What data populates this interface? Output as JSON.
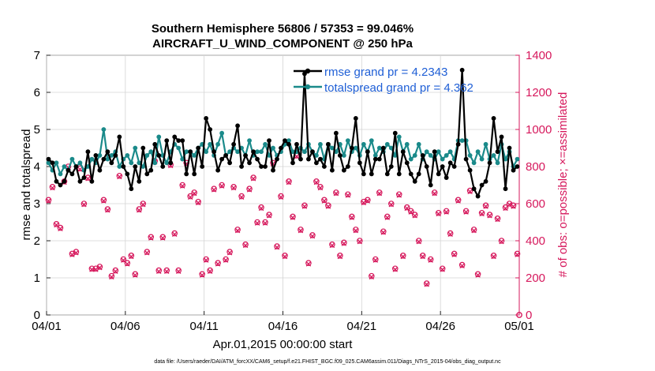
{
  "chart_data": {
    "type": "line",
    "title": "Southern Hemisphere 56806 / 57353 = 99.046%",
    "subtitle": "AIRCRAFT_U_WIND_COMPONENT @ 250 hPa",
    "xlabel": "Apr.01,2015 00:00:00 start",
    "ylabel_left": "rmse and totalspread",
    "ylabel_right": "# of obs: o=possible; ×=assimilated",
    "ylim_left": [
      0,
      7
    ],
    "ylim_right": [
      0,
      1400
    ],
    "yticks_left": [
      "0",
      "1",
      "2",
      "3",
      "4",
      "5",
      "6",
      "7"
    ],
    "yticks_right": [
      "0",
      "200",
      "400",
      "600",
      "800",
      "1000",
      "1200",
      "1400"
    ],
    "xlim_days": [
      0,
      30
    ],
    "xticks": [
      {
        "day": 0,
        "label": "04/01"
      },
      {
        "day": 5,
        "label": "04/06"
      },
      {
        "day": 10,
        "label": "04/11"
      },
      {
        "day": 15,
        "label": "04/16"
      },
      {
        "day": 20,
        "label": "04/21"
      },
      {
        "day": 25,
        "label": "04/26"
      },
      {
        "day": 30,
        "label": "05/01"
      }
    ],
    "series": [
      {
        "name": "rmse",
        "legend": "rmse grand pr = 4.2343",
        "color": "#000000",
        "x": [
          0.125,
          0.375,
          0.625,
          0.875,
          1.125,
          1.375,
          1.625,
          1.875,
          2.125,
          2.375,
          2.625,
          2.875,
          3.125,
          3.375,
          3.625,
          3.875,
          4.125,
          4.375,
          4.625,
          4.875,
          5.125,
          5.375,
          5.625,
          5.875,
          6.125,
          6.375,
          6.625,
          6.875,
          7.125,
          7.375,
          7.625,
          7.875,
          8.125,
          8.375,
          8.625,
          8.875,
          9.125,
          9.375,
          9.625,
          9.875,
          10.125,
          10.375,
          10.625,
          10.875,
          11.125,
          11.375,
          11.625,
          11.875,
          12.125,
          12.375,
          12.625,
          12.875,
          13.125,
          13.375,
          13.625,
          13.875,
          14.125,
          14.375,
          14.625,
          14.875,
          15.125,
          15.375,
          15.625,
          15.875,
          16.125,
          16.375,
          16.625,
          16.875,
          17.125,
          17.375,
          17.625,
          17.875,
          18.125,
          18.375,
          18.625,
          18.875,
          19.125,
          19.375,
          19.625,
          19.875,
          20.125,
          20.375,
          20.625,
          20.875,
          21.125,
          21.375,
          21.625,
          21.875,
          22.125,
          22.375,
          22.625,
          22.875,
          23.125,
          23.375,
          23.625,
          23.875,
          24.125,
          24.375,
          24.625,
          24.875,
          25.125,
          25.375,
          25.625,
          25.875,
          26.125,
          26.375,
          26.625,
          26.875,
          27.125,
          27.375,
          27.625,
          27.875,
          28.125,
          28.375,
          28.625,
          28.875,
          29.125,
          29.375,
          29.625,
          29.875
        ],
        "values": [
          4.2,
          4.1,
          3.6,
          3.5,
          3.6,
          3.9,
          3.8,
          4.0,
          3.6,
          3.7,
          4.4,
          3.6,
          4.3,
          3.9,
          4.2,
          4.4,
          4.1,
          4.3,
          4.8,
          4.0,
          3.8,
          3.4,
          4.0,
          3.6,
          4.5,
          3.8,
          3.9,
          4.6,
          4.3,
          4.0,
          4.7,
          4.1,
          4.8,
          4.7,
          4.7,
          3.8,
          4.4,
          3.8,
          4.5,
          4.0,
          5.3,
          5.0,
          4.4,
          3.9,
          4.2,
          4.3,
          4.1,
          4.6,
          5.1,
          4.0,
          4.3,
          4.1,
          4.4,
          4.2,
          4.0,
          4.0,
          4.7,
          3.9,
          4.2,
          4.5,
          4.7,
          4.6,
          4.1,
          4.6,
          4.2,
          6.5,
          4.2,
          4.4,
          4.1,
          4.2,
          4.0,
          4.6,
          3.9,
          4.9,
          4.3,
          3.9,
          4.0,
          4.5,
          5.3,
          4.1,
          3.8,
          4.4,
          3.8,
          4.2,
          4.2,
          4.5,
          3.8,
          4.0,
          4.9,
          3.8,
          4.4,
          4.1,
          3.8,
          3.6,
          3.8,
          4.3,
          4.0,
          3.5,
          4.4,
          3.8,
          4.0,
          3.7,
          4.1,
          4.0,
          4.6,
          6.6,
          4.2,
          3.9,
          3.4,
          3.2,
          3.5,
          3.6,
          4.1,
          5.3,
          4.4,
          4.8,
          3.4,
          4.5,
          3.9,
          4.0
        ]
      },
      {
        "name": "totalspread",
        "legend": "totalspread grand pr = 4.362",
        "color": "#1a8a8a",
        "x": [
          0.125,
          0.375,
          0.625,
          0.875,
          1.125,
          1.375,
          1.625,
          1.875,
          2.125,
          2.375,
          2.625,
          2.875,
          3.125,
          3.375,
          3.625,
          3.875,
          4.125,
          4.375,
          4.625,
          4.875,
          5.125,
          5.375,
          5.625,
          5.875,
          6.125,
          6.375,
          6.625,
          6.875,
          7.125,
          7.375,
          7.625,
          7.875,
          8.125,
          8.375,
          8.625,
          8.875,
          9.125,
          9.375,
          9.625,
          9.875,
          10.125,
          10.375,
          10.625,
          10.875,
          11.125,
          11.375,
          11.625,
          11.875,
          12.125,
          12.375,
          12.625,
          12.875,
          13.125,
          13.375,
          13.625,
          13.875,
          14.125,
          14.375,
          14.625,
          14.875,
          15.125,
          15.375,
          15.625,
          15.875,
          16.125,
          16.375,
          16.625,
          16.875,
          17.125,
          17.375,
          17.625,
          17.875,
          18.125,
          18.375,
          18.625,
          18.875,
          19.125,
          19.375,
          19.625,
          19.875,
          20.125,
          20.375,
          20.625,
          20.875,
          21.125,
          21.375,
          21.625,
          21.875,
          22.125,
          22.375,
          22.625,
          22.875,
          23.125,
          23.375,
          23.625,
          23.875,
          24.125,
          24.375,
          24.625,
          24.875,
          25.125,
          25.375,
          25.625,
          25.875,
          26.125,
          26.375,
          26.625,
          26.875,
          27.125,
          27.375,
          27.625,
          27.875,
          28.125,
          28.375,
          28.625,
          28.875,
          29.125,
          29.375,
          29.625,
          29.875
        ],
        "values": [
          4.1,
          3.9,
          4.1,
          3.8,
          4.0,
          3.9,
          4.2,
          4.0,
          4.1,
          3.9,
          4.0,
          4.2,
          4.1,
          4.3,
          5.0,
          4.2,
          4.3,
          4.4,
          4.0,
          4.2,
          4.3,
          4.1,
          4.5,
          4.1,
          4.0,
          4.3,
          4.4,
          4.1,
          4.8,
          4.3,
          4.1,
          4.4,
          4.6,
          4.5,
          4.2,
          4.4,
          4.4,
          4.3,
          4.5,
          4.6,
          4.4,
          4.6,
          4.3,
          4.6,
          4.9,
          4.3,
          4.4,
          4.5,
          4.4,
          4.5,
          4.3,
          4.7,
          4.3,
          4.4,
          4.4,
          4.6,
          4.3,
          4.5,
          4.3,
          4.4,
          4.6,
          4.7,
          4.4,
          4.4,
          4.5,
          4.4,
          4.6,
          4.4,
          4.3,
          4.6,
          4.2,
          4.6,
          4.5,
          4.4,
          4.6,
          4.3,
          4.7,
          4.4,
          4.5,
          4.3,
          4.6,
          4.4,
          4.7,
          4.3,
          4.5,
          4.4,
          4.6,
          4.5,
          4.3,
          4.8,
          4.4,
          4.6,
          4.2,
          4.3,
          4.6,
          4.2,
          4.4,
          4.3,
          4.2,
          4.4,
          4.2,
          4.3,
          4.4,
          4.2,
          4.7,
          4.7,
          4.7,
          4.3,
          4.1,
          4.4,
          4.2,
          4.6,
          4.2,
          4.3,
          4.1,
          4.6,
          4.2,
          4.4,
          4.0,
          4.2
        ]
      }
    ],
    "obs": {
      "color": "#d6185c",
      "x": [
        0.125,
        0.375,
        0.625,
        0.875,
        1.125,
        1.375,
        1.625,
        1.875,
        2.125,
        2.375,
        2.625,
        2.875,
        3.125,
        3.375,
        3.625,
        3.875,
        4.125,
        4.375,
        4.625,
        4.875,
        5.125,
        5.375,
        5.625,
        5.875,
        6.125,
        6.375,
        6.625,
        6.875,
        7.125,
        7.375,
        7.625,
        7.875,
        8.125,
        8.375,
        8.625,
        8.875,
        9.125,
        9.375,
        9.625,
        9.875,
        10.125,
        10.375,
        10.625,
        10.875,
        11.125,
        11.375,
        11.625,
        11.875,
        12.125,
        12.375,
        12.625,
        12.875,
        13.125,
        13.375,
        13.625,
        13.875,
        14.125,
        14.375,
        14.625,
        14.875,
        15.125,
        15.375,
        15.625,
        15.875,
        16.125,
        16.375,
        16.625,
        16.875,
        17.125,
        17.375,
        17.625,
        17.875,
        18.125,
        18.375,
        18.625,
        18.875,
        19.125,
        19.375,
        19.625,
        19.875,
        20.125,
        20.375,
        20.625,
        20.875,
        21.125,
        21.375,
        21.625,
        21.875,
        22.125,
        22.375,
        22.625,
        22.875,
        23.125,
        23.375,
        23.625,
        23.875,
        24.125,
        24.375,
        24.625,
        24.875,
        25.125,
        25.375,
        25.625,
        25.875,
        26.125,
        26.375,
        26.625,
        26.875,
        27.125,
        27.375,
        27.625,
        27.875,
        28.125,
        28.375,
        28.625,
        28.875,
        29.125,
        29.375,
        29.625,
        29.875
      ],
      "possible": [
        620,
        690,
        490,
        470,
        720,
        800,
        330,
        340,
        790,
        600,
        740,
        250,
        250,
        260,
        620,
        570,
        210,
        240,
        750,
        300,
        280,
        320,
        220,
        570,
        600,
        340,
        420,
        830,
        240,
        420,
        240,
        810,
        440,
        240,
        700,
        820,
        640,
        660,
        610,
        220,
        300,
        240,
        680,
        280,
        700,
        300,
        340,
        690,
        460,
        640,
        380,
        680,
        740,
        500,
        580,
        500,
        540,
        820,
        370,
        640,
        320,
        720,
        530,
        860,
        460,
        590,
        280,
        430,
        720,
        690,
        620,
        590,
        380,
        660,
        320,
        390,
        650,
        530,
        460,
        400,
        610,
        620,
        210,
        300,
        660,
        450,
        530,
        600,
        250,
        650,
        320,
        580,
        560,
        540,
        400,
        320,
        170,
        300,
        660,
        550,
        250,
        560,
        440,
        330,
        620,
        270,
        560,
        670,
        460,
        220,
        550,
        590,
        540,
        320,
        520,
        400,
        580,
        600,
        590,
        330
      ],
      "assimilated": [
        615,
        685,
        485,
        465,
        715,
        795,
        325,
        335,
        785,
        595,
        735,
        245,
        245,
        255,
        615,
        565,
        205,
        235,
        745,
        295,
        275,
        315,
        215,
        565,
        595,
        335,
        415,
        825,
        235,
        415,
        235,
        805,
        435,
        235,
        695,
        815,
        635,
        655,
        605,
        215,
        295,
        235,
        675,
        275,
        695,
        295,
        335,
        685,
        455,
        635,
        375,
        675,
        735,
        495,
        575,
        495,
        535,
        815,
        365,
        635,
        315,
        715,
        525,
        855,
        455,
        585,
        275,
        425,
        715,
        685,
        615,
        585,
        375,
        655,
        315,
        385,
        645,
        525,
        455,
        395,
        605,
        615,
        205,
        295,
        655,
        445,
        525,
        595,
        245,
        645,
        315,
        575,
        555,
        535,
        395,
        315,
        165,
        295,
        655,
        545,
        245,
        555,
        435,
        325,
        615,
        265,
        555,
        665,
        455,
        215,
        545,
        585,
        535,
        315,
        515,
        395,
        575,
        595,
        585,
        325
      ]
    }
  },
  "footer": "data file: /Users/raeder/DAI/ATM_forcXX/CAM6_setup/f.e21.FHIST_BGC.f09_025.CAM6assim.011/Diags_NTrS_2015-04/obs_diag_output.nc"
}
